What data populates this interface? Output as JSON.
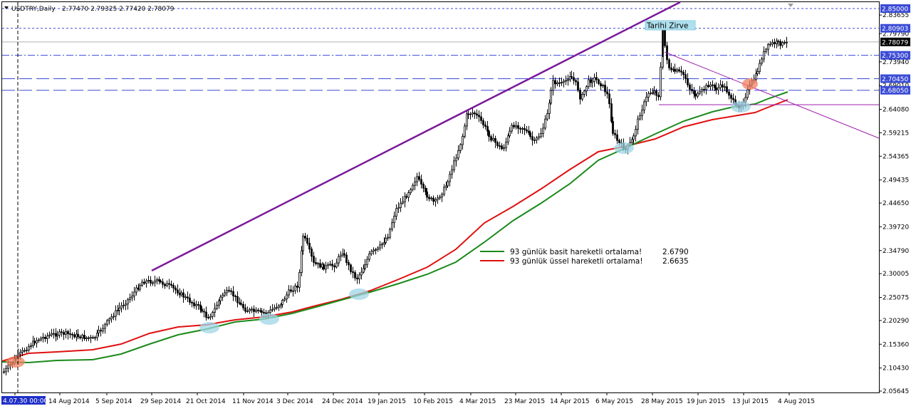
{
  "window": {
    "title_arrow": "▼",
    "title": "USDTRY,Daily",
    "ohlc": "2.77470 2.79325 2.77420 2.78079"
  },
  "chart_data": {
    "type": "candlestick",
    "symbol": "USDTRY",
    "timeframe": "Daily",
    "y_ticks": [
      "2.83655",
      "2.79790",
      "2.73940",
      "2.69010",
      "2.64080",
      "2.59215",
      "2.54365",
      "2.49435",
      "2.44650",
      "2.39720",
      "2.34790",
      "2.30005",
      "2.25075",
      "2.20290",
      "2.15360",
      "2.10430",
      "2.05645"
    ],
    "price_levels": [
      {
        "price": "2.85000",
        "color": "#3a4bd6",
        "style": "dotted"
      },
      {
        "price": "2.80903",
        "color": "#3a4bd6",
        "style": "dotted"
      },
      {
        "price": "2.78079",
        "color": "#000000",
        "style": "current"
      },
      {
        "price": "2.75300",
        "color": "#3a4bd6",
        "style": "dashdot"
      },
      {
        "price": "2.70450",
        "color": "#3a4bd6",
        "style": "longdash"
      },
      {
        "price": "2.68050",
        "color": "#3a4bd6",
        "style": "longdash"
      }
    ],
    "x_ticks": [
      "4.07.30 00:00",
      "14 Aug 2014",
      "5 Sep 2014",
      "29 Sep 2014",
      "21 Oct 2014",
      "11 Nov 2014",
      "3 Dec 2014",
      "24 Dec 2014",
      "19 Jan 2015",
      "10 Feb 2015",
      "4 Mar 2015",
      "23 Mar 2015",
      "14 Apr 2015",
      "6 May 2015",
      "28 May 2015",
      "19 Jun 2015",
      "13 Jul 2015",
      "4 Aug 2015"
    ],
    "annotation": "Tarihi Zirve",
    "legend": [
      {
        "label": "93 günlük basit hareketli ortalama!",
        "value": "2.6790",
        "color": "#1a8a1a"
      },
      {
        "label": "93 günlük üssel hareketli ortalama!",
        "value": "2.6635",
        "color": "#e01010"
      }
    ],
    "ylim": [
      2.05645,
      2.86
    ]
  }
}
